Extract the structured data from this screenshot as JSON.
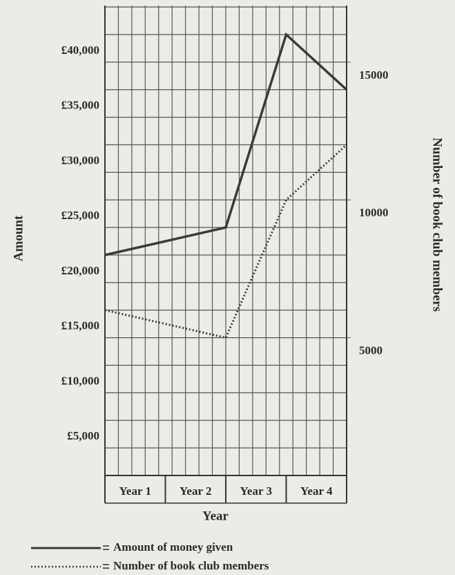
{
  "chart_data": {
    "type": "line",
    "categories": [
      "Year 1",
      "Year 2",
      "Year 3",
      "Year 4"
    ],
    "x_label": "Year",
    "y_label": "Amount",
    "y2_label": "Number of book club members",
    "series": [
      {
        "name": "Amount of money given",
        "color": "#3a3a3a",
        "style": "solid",
        "values": [
          20000,
          22500,
          40000,
          35000
        ]
      },
      {
        "name": "Number of book club members",
        "color": "#3a3a3a",
        "style": "dotted",
        "axis": "y2",
        "values": [
          6000,
          5000,
          10000,
          12000
        ]
      }
    ],
    "ylim": [
      0,
      40000
    ],
    "yticks": [
      {
        "value": 5000,
        "label": "£5,000"
      },
      {
        "value": 10000,
        "label": "£10,000"
      },
      {
        "value": 15000,
        "label": "£15,000"
      },
      {
        "value": 20000,
        "label": "£20,000"
      },
      {
        "value": 25000,
        "label": "£25,000"
      },
      {
        "value": 30000,
        "label": "£30,000"
      },
      {
        "value": 35000,
        "label": "£35,000"
      },
      {
        "value": 40000,
        "label": "£40,000"
      }
    ],
    "y2lim": [
      0,
      16000
    ],
    "y2ticks": [
      5000,
      10000,
      15000
    ],
    "grid": true
  }
}
